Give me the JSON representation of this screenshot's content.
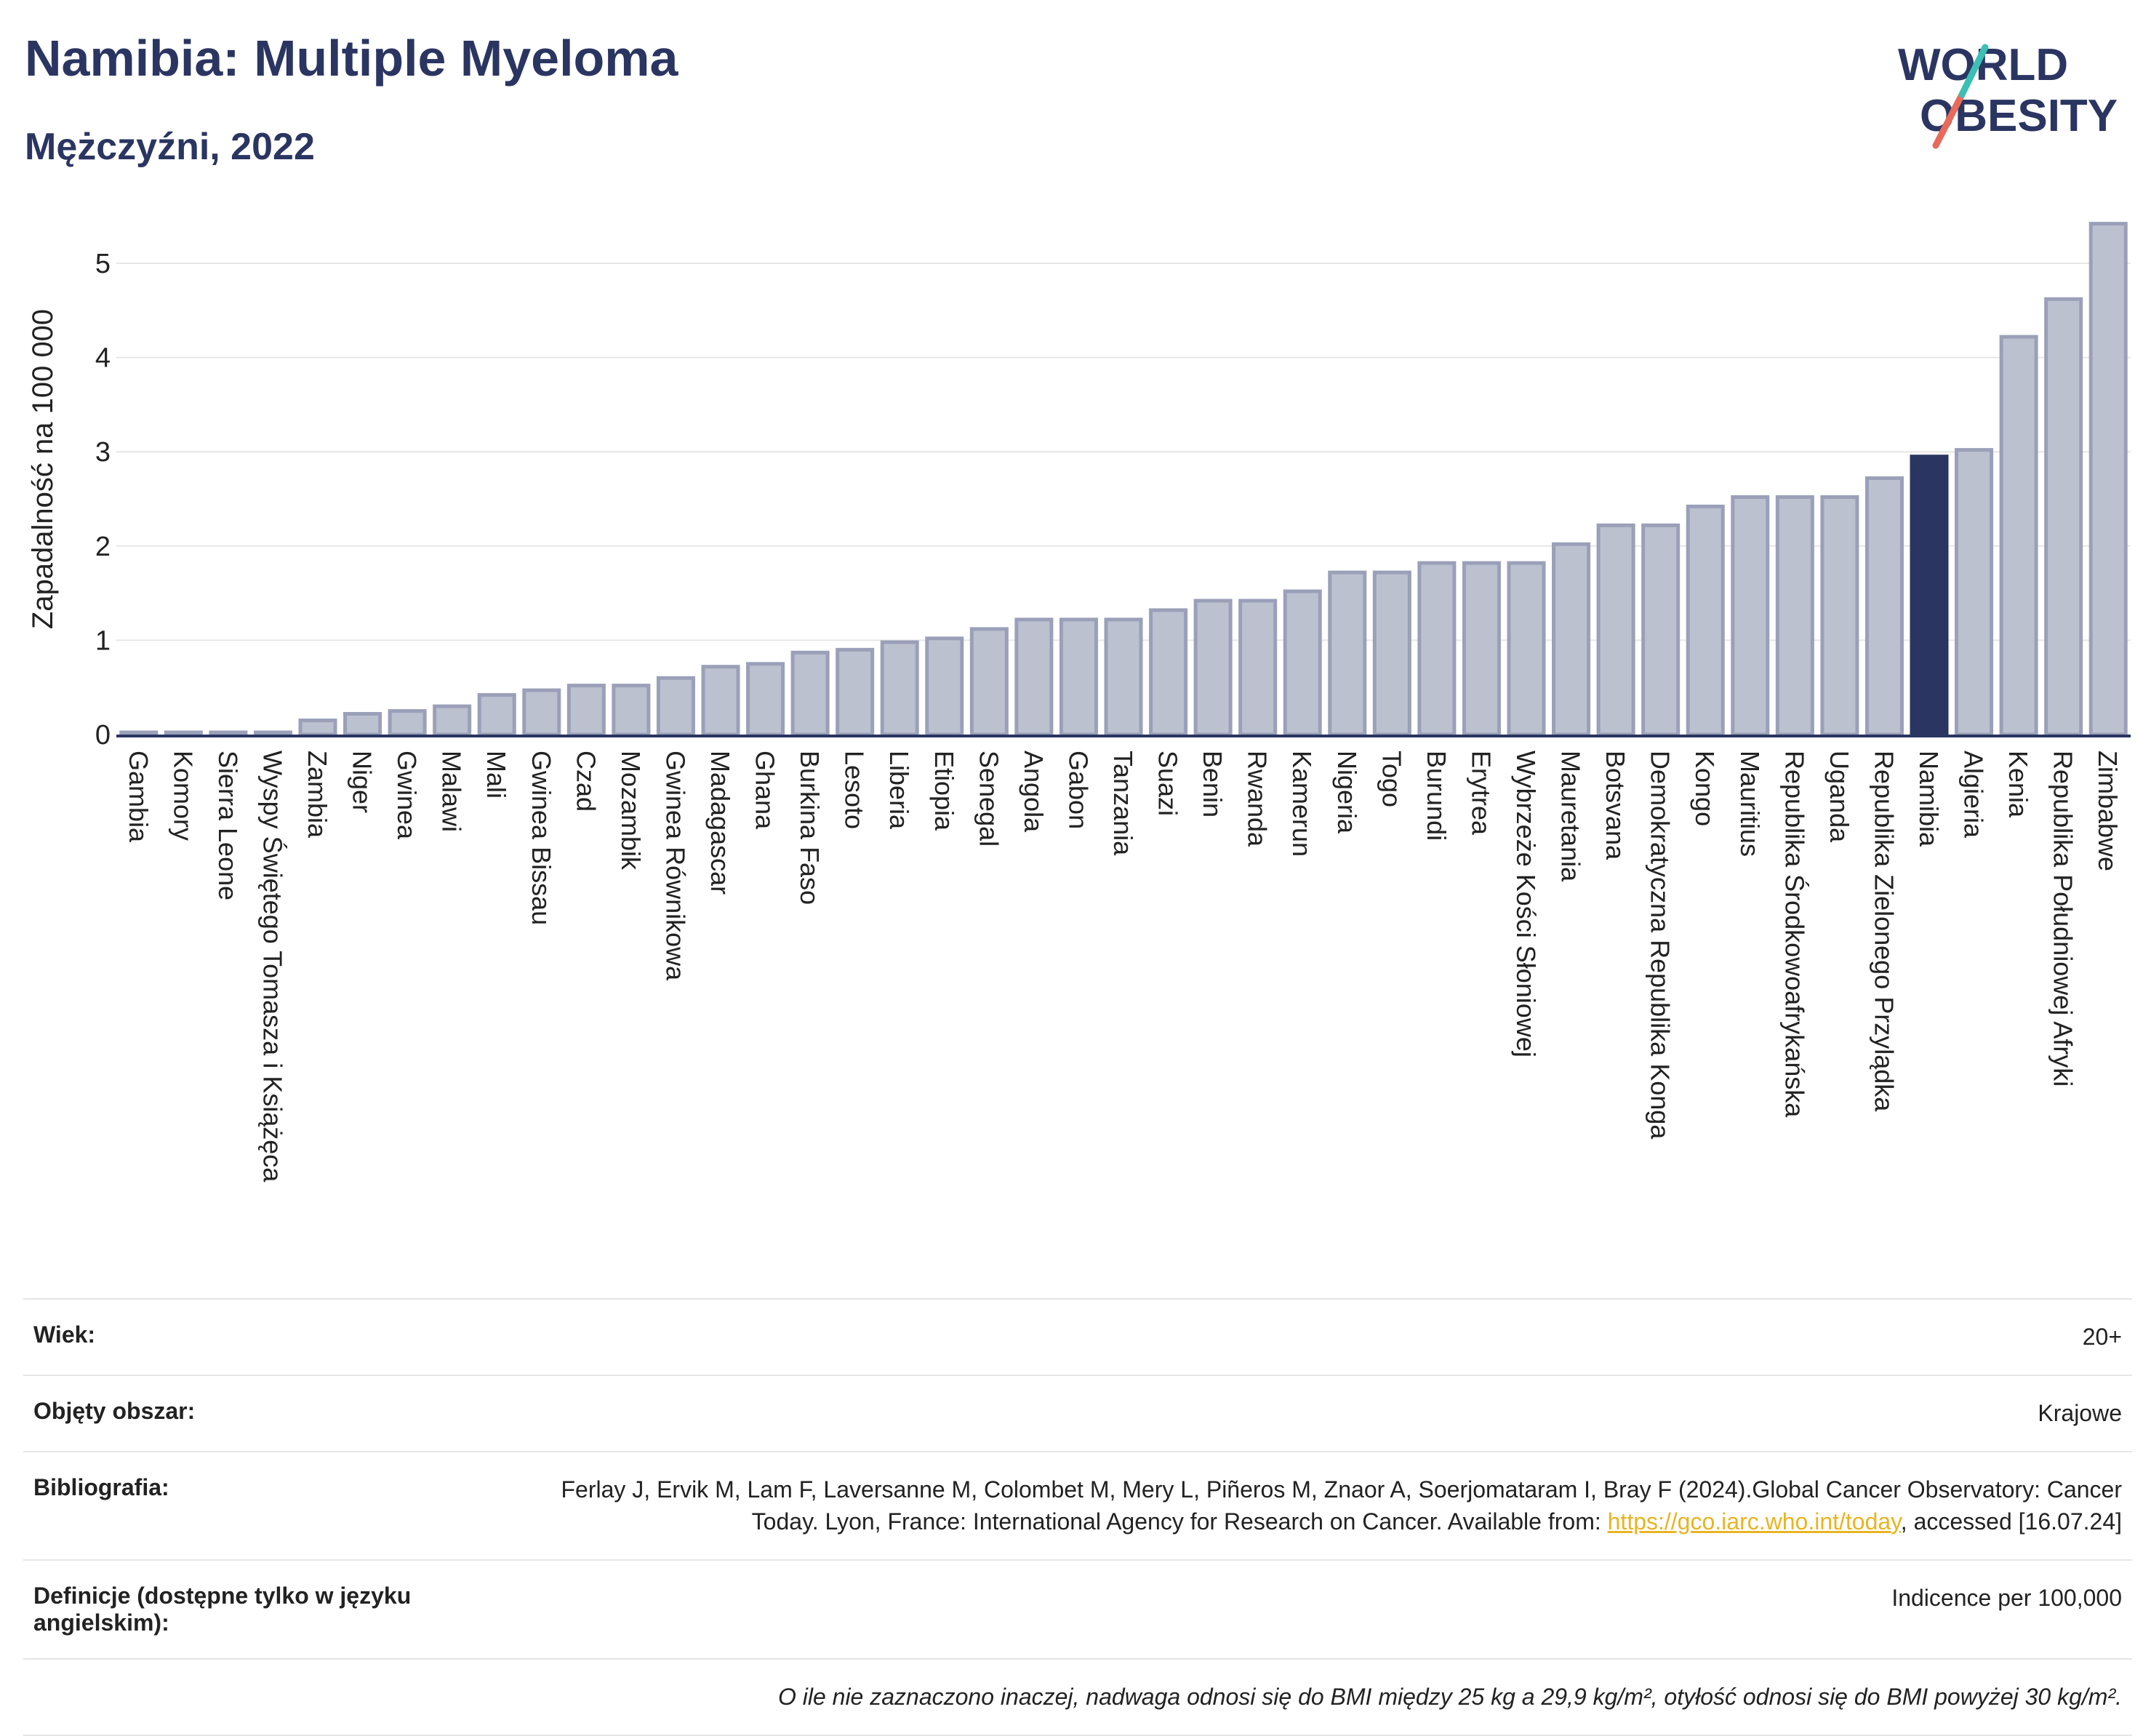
{
  "title": "Namibia: Multiple Myeloma",
  "subtitle": "Mężczyźni, 2022",
  "logo": {
    "line1": "WORLD",
    "line2": "OBESITY"
  },
  "colors": {
    "bar": "#bcc1d0",
    "bar_border": "#9aa0b8",
    "highlight": "#2a3561",
    "title": "#2a3561",
    "link": "#e8b422"
  },
  "chart_data": {
    "type": "bar",
    "ylabel": "Zapadalność na 100 000",
    "xlabel": "",
    "ylim": [
      0,
      5.6
    ],
    "yticks": [
      0,
      1,
      2,
      3,
      4,
      5
    ],
    "grid": true,
    "highlight": "Namibia",
    "categories": [
      "Gambia",
      "Komory",
      "Sierra Leone",
      "Wyspy Świętego Tomasza i Książęca",
      "Zambia",
      "Niger",
      "Gwinea",
      "Malawi",
      "Mali",
      "Gwinea Bissau",
      "Czad",
      "Mozambik",
      "Gwinea Równikowa",
      "Madagascar",
      "Ghana",
      "Burkina Faso",
      "Lesoto",
      "Liberia",
      "Etiopia",
      "Senegal",
      "Angola",
      "Gabon",
      "Tanzania",
      "Suazi",
      "Benin",
      "Rwanda",
      "Kamerun",
      "Nigeria",
      "Togo",
      "Burundi",
      "Erytrea",
      "Wybrzeże Kości Słoniowej",
      "Mauretania",
      "Botsvana",
      "Demokratyczna Republika Konga",
      "Kongo",
      "Mauritius",
      "Republika Środkowoafrykańska",
      "Uganda",
      "Republika Zielonego Przylądka",
      "Namibia",
      "Algieria",
      "Kenia",
      "Republika Południowej Afryki",
      "Zimbabwe"
    ],
    "values": [
      0.02,
      0.02,
      0.02,
      0.02,
      0.15,
      0.22,
      0.25,
      0.3,
      0.42,
      0.47,
      0.52,
      0.52,
      0.6,
      0.72,
      0.75,
      0.87,
      0.9,
      0.98,
      1.02,
      1.12,
      1.22,
      1.22,
      1.22,
      1.32,
      1.42,
      1.42,
      1.52,
      1.72,
      1.72,
      1.82,
      1.82,
      1.82,
      2.02,
      2.22,
      2.22,
      2.42,
      2.52,
      2.52,
      2.52,
      2.72,
      2.95,
      3.02,
      4.22,
      4.62,
      5.42
    ]
  },
  "info": {
    "age_label": "Wiek:",
    "age_value": "20+",
    "coverage_label": "Objęty obszar:",
    "coverage_value": "Krajowe",
    "bib_label": "Bibliografia:",
    "bib_text": "Ferlay J, Ervik M, Lam F, Laversanne M, Colombet M, Mery L, Piñeros M, Znaor A, Soerjomataram I, Bray F (2024).Global Cancer Observatory: Cancer Today. Lyon, France: International Agency for Research on Cancer. Available from: ",
    "bib_link": "https://gco.iarc.who.int/today",
    "bib_tail": ", accessed [16.07.24]",
    "def_label": "Definicje (dostępne tylko w języku angielskim):",
    "def_value": "Indicence per 100,000",
    "note": "O ile nie zaznaczono inaczej, nadwaga odnosi się do BMI między 25 kg a 29,9 kg/m², otyłość odnosi się do BMI powyżej 30 kg/m²."
  }
}
